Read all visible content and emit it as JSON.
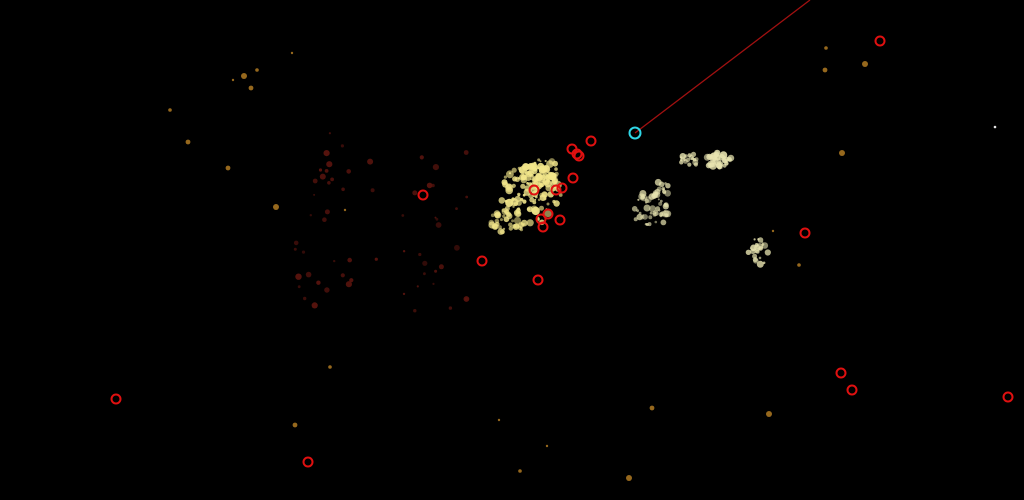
{
  "scene": {
    "background": "#000000",
    "colors": {
      "target_ring": "#e01010",
      "player_ring": "#2fd6e6",
      "aim_line": "#a01010",
      "bright_particle": "#f2e68a",
      "pale_particle": "#e8e4b0",
      "amber_dust": "#b07a22",
      "ember_dust": "#5a140e"
    },
    "icons": [
      "player-ring-icon",
      "target-ring-icon",
      "aim-line"
    ]
  }
}
